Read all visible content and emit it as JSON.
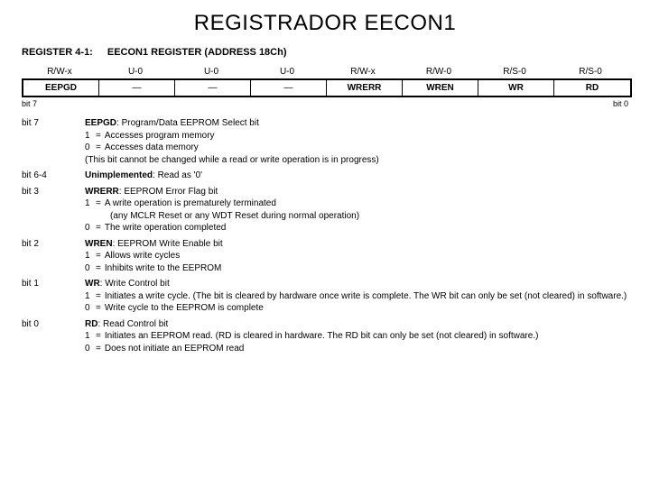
{
  "title": "REGISTRADOR   EECON1",
  "register_label": "REGISTER 4-1:",
  "register_name": "EECON1 REGISTER (ADDRESS 18Ch)",
  "rw_row": [
    "R/W-x",
    "U-0",
    "U-0",
    "U-0",
    "R/W-x",
    "R/W-0",
    "R/S-0",
    "R/S-0"
  ],
  "bit_row": [
    {
      "label": "EEPGD",
      "bold": true
    },
    {
      "label": "—",
      "bold": false
    },
    {
      "label": "—",
      "bold": false
    },
    {
      "label": "—",
      "bold": false
    },
    {
      "label": "WRERR",
      "bold": true
    },
    {
      "label": "WREN",
      "bold": true
    },
    {
      "label": "WR",
      "bold": true
    },
    {
      "label": "RD",
      "bold": true
    }
  ],
  "bit_end_left": "bit 7",
  "bit_end_right": "bit 0",
  "descriptions": [
    {
      "left": "bit 7",
      "header_name": "EEPGD",
      "header_rest": ": Program/Data EEPROM Select bit",
      "lines": [
        {
          "k": "1",
          "eq": "=",
          "v": "Accesses program memory"
        },
        {
          "k": "0",
          "eq": "=",
          "v": "Accesses data memory"
        }
      ],
      "trailer": "(This bit cannot be changed while a read or write operation is in progress)"
    },
    {
      "left": "bit 6-4",
      "header_name": "Unimplemented",
      "header_rest": ": Read as '0'",
      "lines": []
    },
    {
      "left": "bit 3",
      "header_name": "WRERR",
      "header_rest": ": EEPROM Error Flag bit",
      "lines": [
        {
          "k": "1",
          "eq": "=",
          "v": "A write operation is prematurely terminated"
        },
        {
          "k": "",
          "eq": "",
          "v": "(any MCLR Reset or any WDT Reset during normal operation)",
          "indent": true
        },
        {
          "k": "0",
          "eq": "=",
          "v": "The write operation completed"
        }
      ]
    },
    {
      "left": "bit 2",
      "header_name": "WREN",
      "header_rest": ": EEPROM Write Enable bit",
      "lines": [
        {
          "k": "1",
          "eq": "=",
          "v": "Allows write cycles"
        },
        {
          "k": "0",
          "eq": "=",
          "v": "Inhibits write to the EEPROM"
        }
      ]
    },
    {
      "left": "bit 1",
      "header_name": "WR",
      "header_rest": ": Write Control bit",
      "lines": [
        {
          "k": "1",
          "eq": "=",
          "v": "Initiates a write cycle. (The bit is cleared by hardware once write is complete. The WR bit can only be set (not cleared) in software.)"
        },
        {
          "k": "0",
          "eq": "=",
          "v": "Write cycle to the EEPROM is complete"
        }
      ]
    },
    {
      "left": "bit 0",
      "header_name": "RD",
      "header_rest": ": Read Control bit",
      "lines": [
        {
          "k": "1",
          "eq": "=",
          "v": "Initiates an EEPROM read. (RD is cleared in hardware. The RD bit can only be set (not cleared) in software.)"
        },
        {
          "k": "0",
          "eq": "=",
          "v": "Does not initiate an EEPROM read"
        }
      ]
    }
  ]
}
